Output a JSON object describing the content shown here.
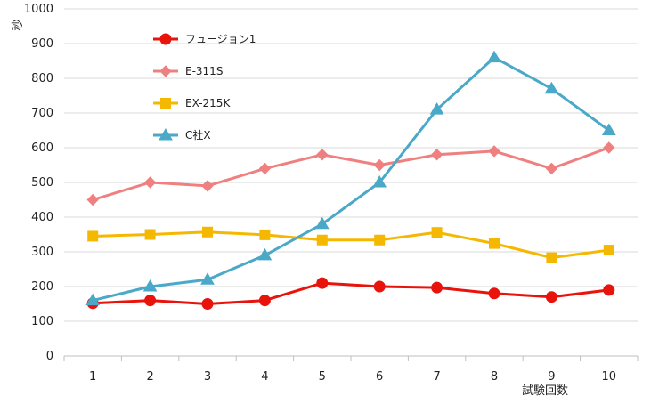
{
  "chart_data": {
    "type": "line",
    "xlabel": "試験回数",
    "ylabel": "秒",
    "ylim": [
      0,
      1000
    ],
    "yticks": [
      0,
      100,
      200,
      300,
      400,
      500,
      600,
      700,
      800,
      900,
      1000
    ],
    "categories": [
      "1",
      "2",
      "3",
      "4",
      "5",
      "6",
      "7",
      "8",
      "9",
      "10"
    ],
    "grid": "horizontal",
    "legend_position": "top-left",
    "series": [
      {
        "name": "フュージョン1",
        "color": "#e8140c",
        "marker": "circle",
        "values": [
          152,
          160,
          150,
          160,
          210,
          200,
          197,
          180,
          170,
          190
        ]
      },
      {
        "name": "E-311S",
        "color": "#f08080",
        "marker": "diamond",
        "values": [
          450,
          500,
          490,
          540,
          580,
          550,
          580,
          590,
          540,
          600
        ]
      },
      {
        "name": "EX-215K",
        "color": "#f5b800",
        "marker": "square",
        "values": [
          345,
          350,
          357,
          349,
          334,
          334,
          356,
          324,
          283,
          305
        ]
      },
      {
        "name": "C社X",
        "color": "#4aa8c8",
        "marker": "triangle",
        "values": [
          160,
          200,
          220,
          290,
          380,
          500,
          710,
          860,
          770,
          650
        ]
      }
    ]
  }
}
